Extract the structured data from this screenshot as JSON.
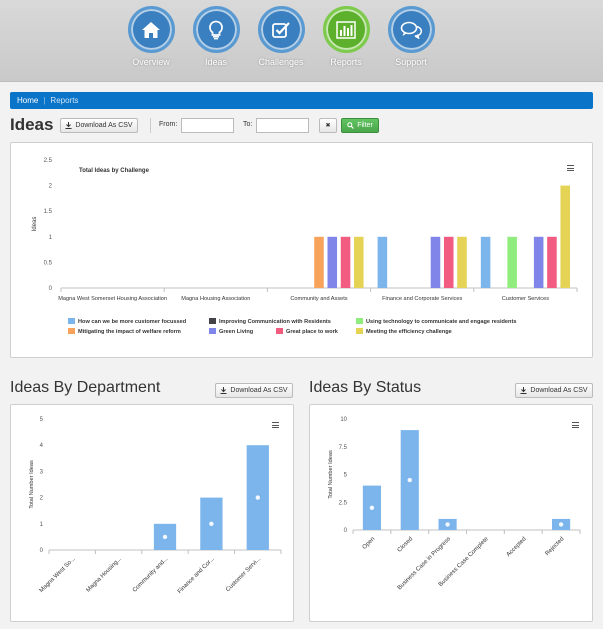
{
  "nav": {
    "items": [
      {
        "label": "Overview",
        "icon": "home-icon"
      },
      {
        "label": "Ideas",
        "icon": "lightbulb-icon"
      },
      {
        "label": "Challenges",
        "icon": "checkbox-icon"
      },
      {
        "label": "Reports",
        "icon": "bar-chart-icon"
      },
      {
        "label": "Support",
        "icon": "chat-icon"
      }
    ],
    "active": "Reports"
  },
  "breadcrumb": {
    "home": "Home",
    "sep": "|",
    "current": "Reports"
  },
  "ideas_section": {
    "title": "Ideas",
    "download_label": "Download As CSV",
    "from_label": "From:",
    "to_label": "To:",
    "clear_label": "✖",
    "filter_label": "Filter"
  },
  "department_section": {
    "title": "Ideas By Department",
    "download_label": "Download As CSV"
  },
  "status_section": {
    "title": "Ideas By Status",
    "download_label": "Download As CSV"
  },
  "colors": {
    "s1": "#7cb5ec",
    "s2": "#434348",
    "s3": "#90ed7d",
    "s4": "#f7a35c",
    "s5": "#8085e9",
    "s6": "#f15c80",
    "s7": "#e4d354",
    "bar": "#7cb5ec"
  },
  "chart_data": [
    {
      "type": "bar",
      "title": "Total Ideas by Challenge",
      "ylabel": "Ideas",
      "ylim": [
        0,
        2.5
      ],
      "yticks": [
        "0",
        "0.5",
        "1",
        "1.5",
        "2",
        "2.5"
      ],
      "categories": [
        "Magna West Somerset Housing Association",
        "Magna Housing Association",
        "Community and Assets",
        "Finance and Corporate Services",
        "Customer Services"
      ],
      "series": [
        {
          "name": "How can we be more customer focussed",
          "values": [
            0,
            0,
            0,
            1,
            1
          ]
        },
        {
          "name": "Improving Communication with Residents",
          "values": [
            0,
            0,
            0,
            0,
            0
          ]
        },
        {
          "name": "Using technology to communicate and engage residents",
          "values": [
            0,
            0,
            0,
            0,
            1
          ]
        },
        {
          "name": "Mitigating the impact of welfare reform",
          "values": [
            0,
            0,
            1,
            0,
            0
          ]
        },
        {
          "name": "Green Living",
          "values": [
            0,
            0,
            1,
            1,
            1
          ]
        },
        {
          "name": "Great place to work",
          "values": [
            0,
            0,
            1,
            1,
            1
          ]
        },
        {
          "name": "Meeting the efficiency challenge",
          "values": [
            0,
            0,
            1,
            1,
            2
          ]
        }
      ],
      "legend": "bottom"
    },
    {
      "type": "bar",
      "ylabel": "Total Number Ideas",
      "ylim": [
        0,
        5
      ],
      "yticks": [
        "0",
        "1",
        "2",
        "3",
        "4",
        "5"
      ],
      "categories": [
        "Magna West So...",
        "Magna Housing...",
        "Community and...",
        "Finance and Cor...",
        "Customer Servi..."
      ],
      "values": [
        0,
        0,
        1,
        2,
        4
      ]
    },
    {
      "type": "bar",
      "ylabel": "Total Number Ideas",
      "ylim": [
        0,
        10
      ],
      "yticks": [
        "0",
        "2.5",
        "5",
        "7.5",
        "10"
      ],
      "categories": [
        "Open",
        "Closed",
        "Business Case in Progress",
        "Business Case Complete",
        "Accepted",
        "Rejected"
      ],
      "values": [
        4,
        9,
        1,
        0,
        0,
        1
      ]
    }
  ]
}
